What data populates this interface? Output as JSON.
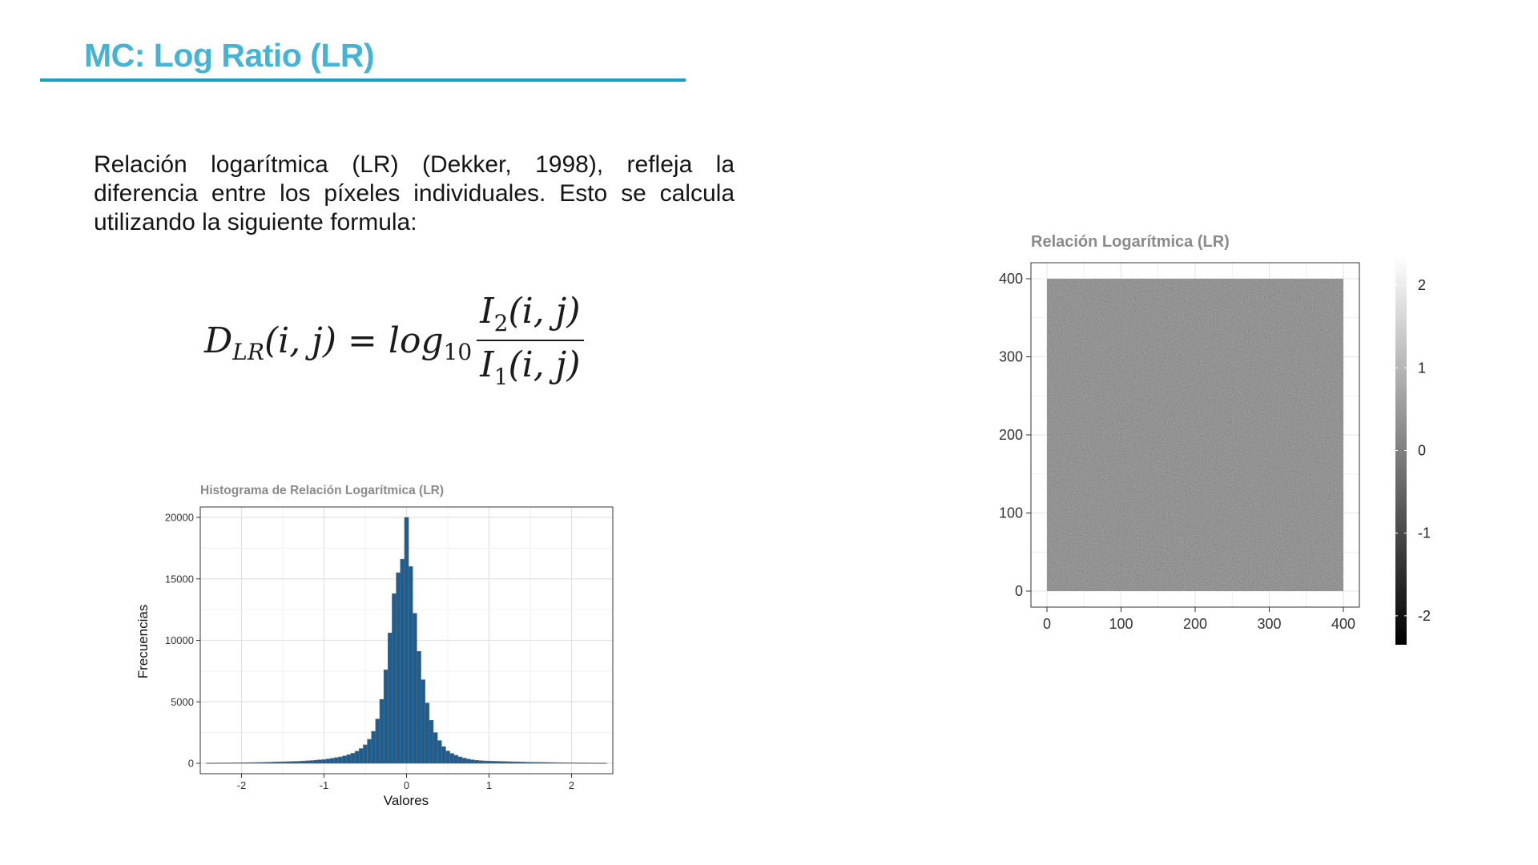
{
  "slide": {
    "title": "MC: Log Ratio (LR)",
    "body": "Relación logarítmica (LR) (Dekker, 1998), refleja la diferencia entre los píxeles individuales. Esto se calcula utilizando la siguiente formula:",
    "formula": {
      "lhs_symbol": "D",
      "lhs_subscript": "LR",
      "lhs_args": "(i, j)",
      "equals": "=",
      "log_text": "log",
      "log_base": "10",
      "numerator_symbol": "I",
      "numerator_subscript": "2",
      "numerator_args": "(i, j)",
      "denominator_symbol": "I",
      "denominator_subscript": "1",
      "denominator_args": "(i, j)"
    }
  },
  "chart_data": [
    {
      "type": "bar",
      "title": "Histograma de Relación Logarítmica (LR)",
      "xlabel": "Valores",
      "ylabel": "Frecuencias",
      "xlim": [
        -2.5,
        2.5
      ],
      "ylim": [
        0,
        20000
      ],
      "x_ticks": [
        -2,
        -1,
        0,
        1,
        2
      ],
      "x_tick_labels": [
        "-2",
        "-1",
        "0",
        "1",
        "2"
      ],
      "y_ticks": [
        0,
        5000,
        10000,
        15000,
        20000
      ],
      "y_tick_labels": [
        "0",
        "5000",
        "10000",
        "15000",
        "20000"
      ],
      "bin_width": 0.05,
      "x": [
        -2.4,
        -2.35,
        -2.3,
        -2.25,
        -2.2,
        -2.15,
        -2.1,
        -2.05,
        -2.0,
        -1.95,
        -1.9,
        -1.85,
        -1.8,
        -1.75,
        -1.7,
        -1.65,
        -1.6,
        -1.55,
        -1.5,
        -1.45,
        -1.4,
        -1.35,
        -1.3,
        -1.25,
        -1.2,
        -1.15,
        -1.1,
        -1.05,
        -1.0,
        -0.95,
        -0.9,
        -0.85,
        -0.8,
        -0.75,
        -0.7,
        -0.65,
        -0.6,
        -0.55,
        -0.5,
        -0.45,
        -0.4,
        -0.35,
        -0.3,
        -0.25,
        -0.2,
        -0.15,
        -0.1,
        -0.05,
        0.0,
        0.05,
        0.1,
        0.15,
        0.2,
        0.25,
        0.3,
        0.35,
        0.4,
        0.45,
        0.5,
        0.55,
        0.6,
        0.65,
        0.7,
        0.75,
        0.8,
        0.85,
        0.9,
        0.95,
        1.0,
        1.05,
        1.1,
        1.15,
        1.2,
        1.25,
        1.3,
        1.35,
        1.4,
        1.45,
        1.5,
        1.55,
        1.6,
        1.65,
        1.7,
        1.75,
        1.8,
        1.85,
        1.9,
        1.95,
        2.0,
        2.05,
        2.1,
        2.15,
        2.2,
        2.25,
        2.3,
        2.35,
        2.4
      ],
      "values": [
        20,
        20,
        25,
        25,
        30,
        30,
        35,
        40,
        45,
        50,
        55,
        60,
        65,
        70,
        80,
        90,
        100,
        110,
        120,
        130,
        140,
        150,
        160,
        180,
        200,
        220,
        250,
        280,
        300,
        350,
        400,
        460,
        520,
        600,
        700,
        820,
        980,
        1200,
        1500,
        1950,
        2600,
        3600,
        5200,
        7600,
        10600,
        13800,
        15500,
        16600,
        20000,
        16000,
        12200,
        9100,
        6800,
        4900,
        3500,
        2500,
        1850,
        1350,
        1000,
        800,
        650,
        520,
        420,
        340,
        280,
        240,
        210,
        190,
        180,
        170,
        160,
        150,
        140,
        130,
        120,
        110,
        100,
        90,
        85,
        80,
        75,
        70,
        65,
        60,
        55,
        50,
        45,
        40,
        38,
        35,
        30,
        28,
        25,
        22,
        20,
        20,
        20
      ],
      "bar_color": "#1c5e91",
      "bar_outline": "#6b6b6b",
      "grid": true
    },
    {
      "type": "heatmap",
      "title": "Relación Logarítmica (LR)",
      "xlim": [
        0,
        400
      ],
      "ylim": [
        0,
        400
      ],
      "x_ticks": [
        0,
        100,
        200,
        300,
        400
      ],
      "x_tick_labels": [
        "0",
        "100",
        "200",
        "300",
        "400"
      ],
      "y_ticks": [
        0,
        100,
        200,
        300,
        400
      ],
      "y_tick_labels": [
        "0",
        "100",
        "200",
        "300",
        "400"
      ],
      "colorbar": {
        "min": -2.35,
        "max": 2.35,
        "ticks": [
          2,
          1,
          0,
          -1,
          -2
        ],
        "tick_labels": [
          "2",
          "1",
          "0",
          "-1",
          "-2"
        ],
        "colors": [
          "#000000",
          "#ffffff"
        ]
      },
      "grid": true
    }
  ]
}
